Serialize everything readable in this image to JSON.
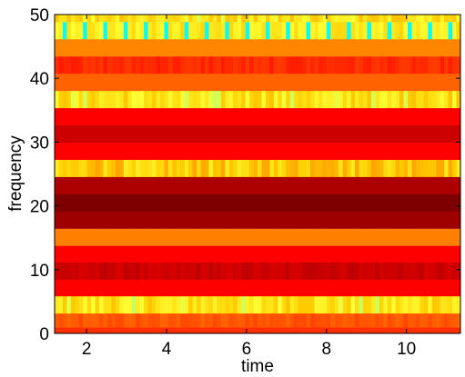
{
  "chart_data": {
    "type": "heatmap",
    "title": "",
    "xlabel": "time",
    "ylabel": "frequency",
    "xlim": [
      1.2,
      11.35
    ],
    "ylim": [
      0,
      50
    ],
    "xticks": [
      2,
      4,
      6,
      8,
      10
    ],
    "yticks": [
      0,
      10,
      20,
      30,
      40,
      50
    ],
    "colormap": "hot",
    "colormap_stops": [
      {
        "v": 0.0,
        "color": "#7f0000"
      },
      {
        "v": 0.2,
        "color": "#cc0000"
      },
      {
        "v": 0.35,
        "color": "#ff0000"
      },
      {
        "v": 0.5,
        "color": "#ff4000"
      },
      {
        "v": 0.65,
        "color": "#ff8000"
      },
      {
        "v": 0.8,
        "color": "#ffcc00"
      },
      {
        "v": 0.92,
        "color": "#ffff33"
      },
      {
        "v": 1.0,
        "color": "#00ffff"
      }
    ],
    "bands": [
      {
        "y": [
          0,
          1
        ],
        "level": 0.46,
        "pattern": "uniform"
      },
      {
        "y": [
          1,
          3.2
        ],
        "level": 0.55,
        "pattern": "mottled"
      },
      {
        "y": [
          3.2,
          5.9
        ],
        "level": 0.86,
        "pattern": "speckled"
      },
      {
        "y": [
          5.9,
          8.5
        ],
        "level": 0.35,
        "pattern": "uniform"
      },
      {
        "y": [
          8.5,
          11.2
        ],
        "level": 0.2,
        "pattern": "mottled"
      },
      {
        "y": [
          11.2,
          13.8
        ],
        "level": 0.35,
        "pattern": "uniform"
      },
      {
        "y": [
          13.8,
          16.5
        ],
        "level": 0.65,
        "pattern": "uniform"
      },
      {
        "y": [
          16.5,
          19.2
        ],
        "level": 0.08,
        "pattern": "uniform"
      },
      {
        "y": [
          19.2,
          21.9
        ],
        "level": 0.0,
        "pattern": "uniform"
      },
      {
        "y": [
          21.9,
          24.6
        ],
        "level": 0.12,
        "pattern": "uniform"
      },
      {
        "y": [
          24.6,
          27.3
        ],
        "level": 0.8,
        "pattern": "speckled"
      },
      {
        "y": [
          27.3,
          30
        ],
        "level": 0.35,
        "pattern": "uniform"
      },
      {
        "y": [
          30,
          32.7
        ],
        "level": 0.2,
        "pattern": "uniform"
      },
      {
        "y": [
          32.7,
          35.4
        ],
        "level": 0.35,
        "pattern": "uniform"
      },
      {
        "y": [
          35.4,
          38.1
        ],
        "level": 0.86,
        "pattern": "speckled"
      },
      {
        "y": [
          38.1,
          40.8
        ],
        "level": 0.58,
        "pattern": "uniform"
      },
      {
        "y": [
          40.8,
          43.5
        ],
        "level": 0.45,
        "pattern": "mottled"
      },
      {
        "y": [
          43.5,
          46.2
        ],
        "level": 0.66,
        "pattern": "uniform"
      },
      {
        "y": [
          46.2,
          48.9
        ],
        "level": 0.92,
        "pattern": "speckled-cyan"
      },
      {
        "y": [
          48.9,
          50
        ],
        "level": 0.86,
        "pattern": "speckled"
      }
    ]
  }
}
